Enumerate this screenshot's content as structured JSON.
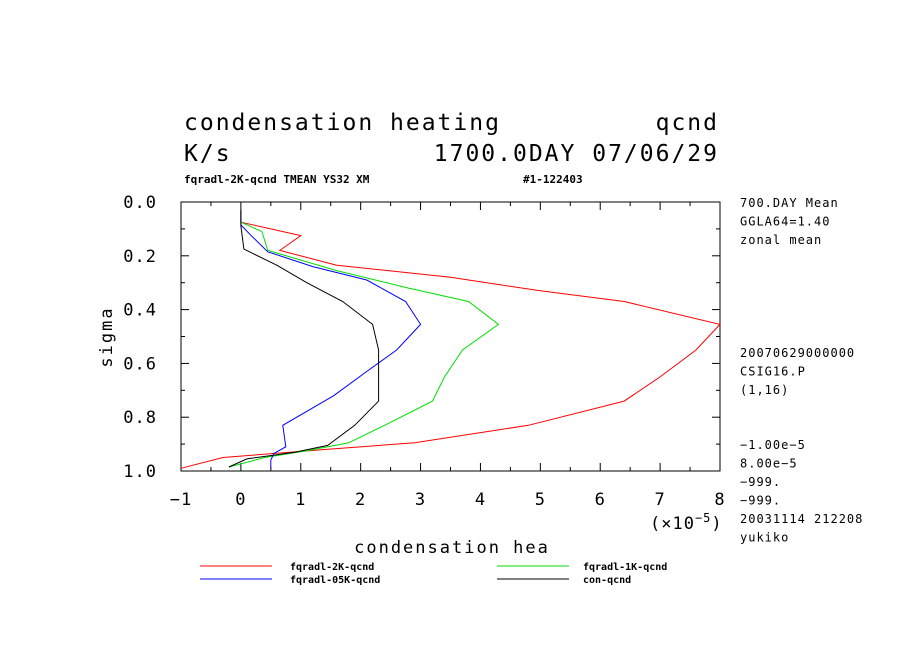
{
  "chart_data": {
    "type": "line",
    "title": "condensation heating",
    "title_right": "qcnd",
    "units": "K/s",
    "time_label": "1700.0DAY 07/06/29",
    "subtitle_left": "fqradl-2K-qcnd TMEAN YS32 XM",
    "subtitle_right": "#1-122403",
    "xlabel": "condensation hea",
    "ylabel": "sigma",
    "x_scale_label": "(×10",
    "x_scale_exp": "−5",
    "x_scale_close": ")",
    "xlim": [
      -1,
      8
    ],
    "ylim": [
      1.0,
      0.0
    ],
    "x_ticks": [
      "−1",
      "0",
      "1",
      "2",
      "3",
      "4",
      "5",
      "6",
      "7",
      "8"
    ],
    "y_ticks": [
      "0.0",
      "0.2",
      "0.4",
      "0.6",
      "0.8",
      "1.0"
    ],
    "side_info_top": [
      "700.DAY Mean",
      "GGLA64=1.40",
      "zonal mean"
    ],
    "side_info_mid": [
      "20070629000000",
      "CSIG16.P",
      "(1,16)"
    ],
    "side_info_bottom": [
      "−1.00e−5",
      "8.00e−5",
      "−999.",
      "−999.",
      "20031114 212208",
      "yukiko"
    ],
    "series": [
      {
        "name": "fqradl-2K-qcnd",
        "color": "#ff0000",
        "points": [
          [
            0.0,
            0.03
          ],
          [
            0.0,
            0.075
          ],
          [
            1.0,
            0.125
          ],
          [
            0.65,
            0.18
          ],
          [
            1.6,
            0.235
          ],
          [
            3.5,
            0.28
          ],
          [
            5.0,
            0.33
          ],
          [
            6.4,
            0.37
          ],
          [
            8.0,
            0.455
          ],
          [
            7.6,
            0.55
          ],
          [
            7.0,
            0.65
          ],
          [
            6.4,
            0.74
          ],
          [
            4.8,
            0.83
          ],
          [
            2.9,
            0.895
          ],
          [
            1.4,
            0.92
          ],
          [
            -0.3,
            0.95
          ],
          [
            -1.0,
            0.99
          ]
        ]
      },
      {
        "name": "fqradl-1K-qcnd",
        "color": "#00dd00",
        "points": [
          [
            0.0,
            0.03
          ],
          [
            0.0,
            0.075
          ],
          [
            0.35,
            0.11
          ],
          [
            0.45,
            0.18
          ],
          [
            1.6,
            0.255
          ],
          [
            2.8,
            0.32
          ],
          [
            3.8,
            0.37
          ],
          [
            4.3,
            0.455
          ],
          [
            3.7,
            0.55
          ],
          [
            3.4,
            0.65
          ],
          [
            3.2,
            0.74
          ],
          [
            2.4,
            0.83
          ],
          [
            1.8,
            0.895
          ],
          [
            1.1,
            0.925
          ],
          [
            0.4,
            0.95
          ],
          [
            -0.2,
            0.985
          ]
        ]
      },
      {
        "name": "fqradl-05K-qcnd",
        "color": "#0000ff",
        "points": [
          [
            0.0,
            0.03
          ],
          [
            0.0,
            0.085
          ],
          [
            0.15,
            0.12
          ],
          [
            0.45,
            0.185
          ],
          [
            1.2,
            0.24
          ],
          [
            2.1,
            0.29
          ],
          [
            2.75,
            0.37
          ],
          [
            3.0,
            0.455
          ],
          [
            2.6,
            0.55
          ],
          [
            2.1,
            0.63
          ],
          [
            1.55,
            0.72
          ],
          [
            0.7,
            0.83
          ],
          [
            0.75,
            0.91
          ],
          [
            0.55,
            0.935
          ],
          [
            0.5,
            0.96
          ],
          [
            0.5,
            0.99
          ]
        ]
      },
      {
        "name": "con-qcnd",
        "color": "#000000",
        "points": [
          [
            0.0,
            0.03
          ],
          [
            0.0,
            0.09
          ],
          [
            0.05,
            0.175
          ],
          [
            0.6,
            0.235
          ],
          [
            1.1,
            0.3
          ],
          [
            1.7,
            0.37
          ],
          [
            2.2,
            0.455
          ],
          [
            2.3,
            0.55
          ],
          [
            2.3,
            0.65
          ],
          [
            2.3,
            0.74
          ],
          [
            1.9,
            0.83
          ],
          [
            1.45,
            0.905
          ],
          [
            0.9,
            0.93
          ],
          [
            0.1,
            0.955
          ],
          [
            -0.2,
            0.985
          ]
        ]
      }
    ]
  }
}
